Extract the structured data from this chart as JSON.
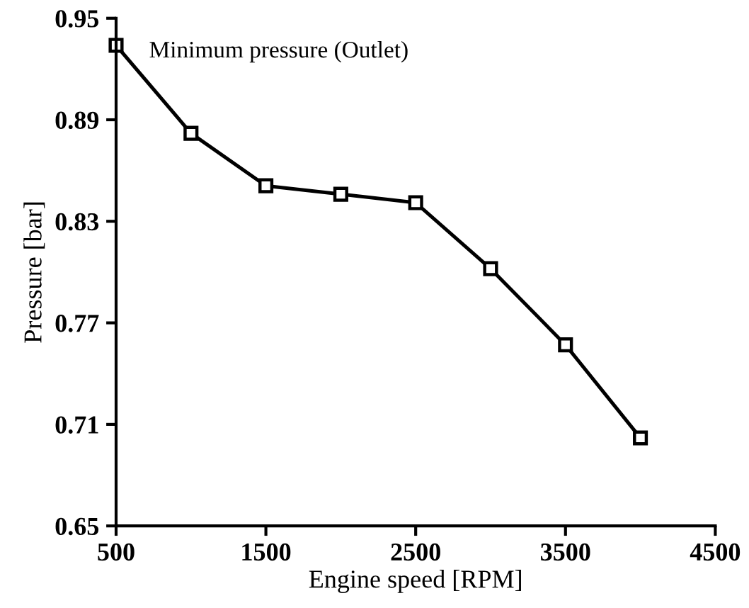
{
  "chart_data": {
    "type": "line",
    "xlabel": "Engine speed [RPM]",
    "ylabel": "Pressure [bar]",
    "annotations": [
      "Minimum pressure (Outlet)"
    ],
    "x": [
      500,
      1000,
      1500,
      2000,
      2500,
      3000,
      3500,
      4000
    ],
    "series": [
      {
        "color": "#000000",
        "values": [
          0.934,
          0.882,
          0.851,
          0.846,
          0.841,
          0.802,
          0.757,
          0.702
        ]
      }
    ],
    "xlim": [
      500,
      4500
    ],
    "xticks": [
      500,
      1500,
      2500,
      3500,
      4500
    ],
    "ylim": [
      0.65,
      0.95
    ],
    "yticks": [
      0.65,
      0.71,
      0.77,
      0.83,
      0.89,
      0.95
    ],
    "grid": false,
    "legend": false,
    "marker": "square",
    "line_style": "solid"
  }
}
